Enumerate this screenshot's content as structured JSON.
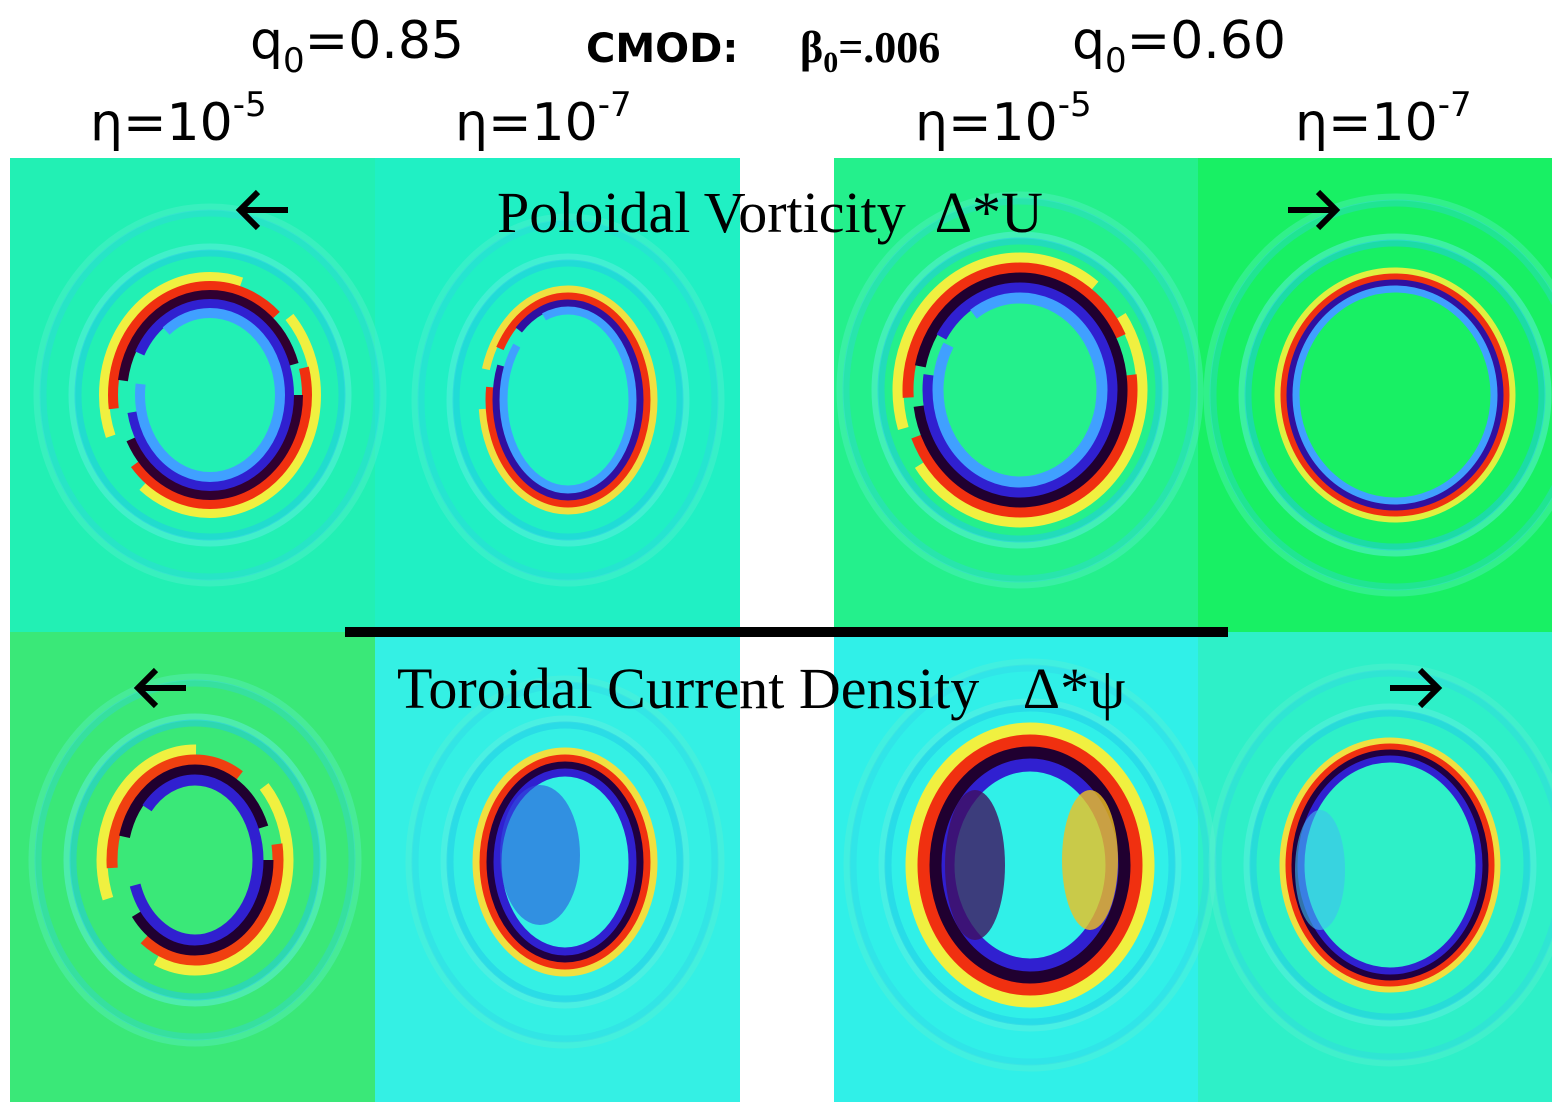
{
  "header": {
    "left": {
      "symbol": "q",
      "sub": "0",
      "value": "=0.85"
    },
    "center": {
      "label": "CMOD:",
      "symbol": "β",
      "sub": "0",
      "value": "=.006"
    },
    "right": {
      "symbol": "q",
      "sub": "0",
      "value": "=0.60"
    }
  },
  "columns": [
    {
      "base": "η=10",
      "exp": "-5"
    },
    {
      "base": "η=10",
      "exp": "-7"
    },
    {
      "base": "η=10",
      "exp": "-5"
    },
    {
      "base": "η=10",
      "exp": "-7"
    }
  ],
  "rows": [
    {
      "title": "Poloidal Vorticity  Δ*U"
    },
    {
      "title": "Toroidal Current Density   Δ*ψ"
    }
  ]
}
